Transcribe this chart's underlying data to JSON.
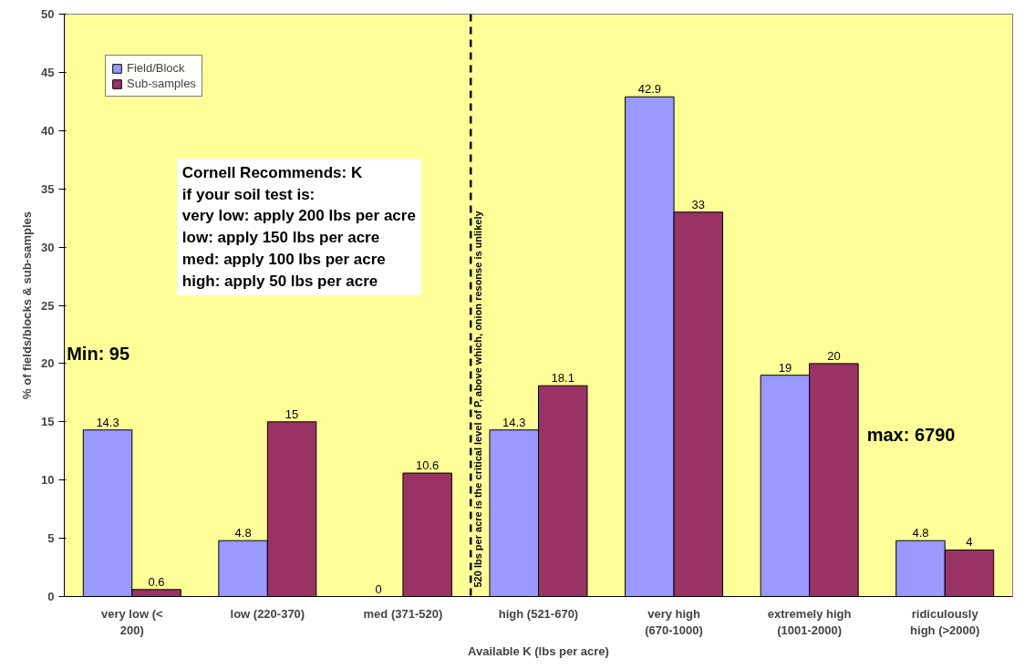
{
  "chart_data": {
    "type": "bar",
    "xlabel": "Available K (lbs per acre)",
    "ylabel": "% of fields/blocks & sub-samples",
    "categories": [
      "very low (< 200)",
      "low (220-370)",
      "med (371-520)",
      "high (521-670)",
      "very high (670-1000)",
      "extremely high (1001-2000)",
      "ridiculously high (>2000)"
    ],
    "series": [
      {
        "name": "Field/Block",
        "color": "#9999ff",
        "values": [
          14.3,
          4.8,
          0,
          14.3,
          42.9,
          19,
          4.8
        ]
      },
      {
        "name": "Sub-samples",
        "color": "#993366",
        "values": [
          0.6,
          15,
          10.6,
          18.1,
          33,
          20,
          4
        ]
      }
    ],
    "ylim": [
      0,
      50
    ],
    "yticks": [
      0,
      5,
      10,
      15,
      20,
      25,
      30,
      35,
      40,
      45,
      50
    ],
    "data_labels": true,
    "grid": false,
    "legend": "top left",
    "annotations": [
      [
        "Cornell Recommends: K",
        "if your soil test is:",
        "very low: apply 200 lbs per acre",
        "low: apply 150 lbs per acre",
        "med: apply 100 lbs per acre",
        "high: apply 50 lbs per acre"
      ],
      "520 lbs per acre is the critical level of P, above which, onion resonse is unlikely",
      "Min: 95",
      "max: 6790"
    ]
  }
}
